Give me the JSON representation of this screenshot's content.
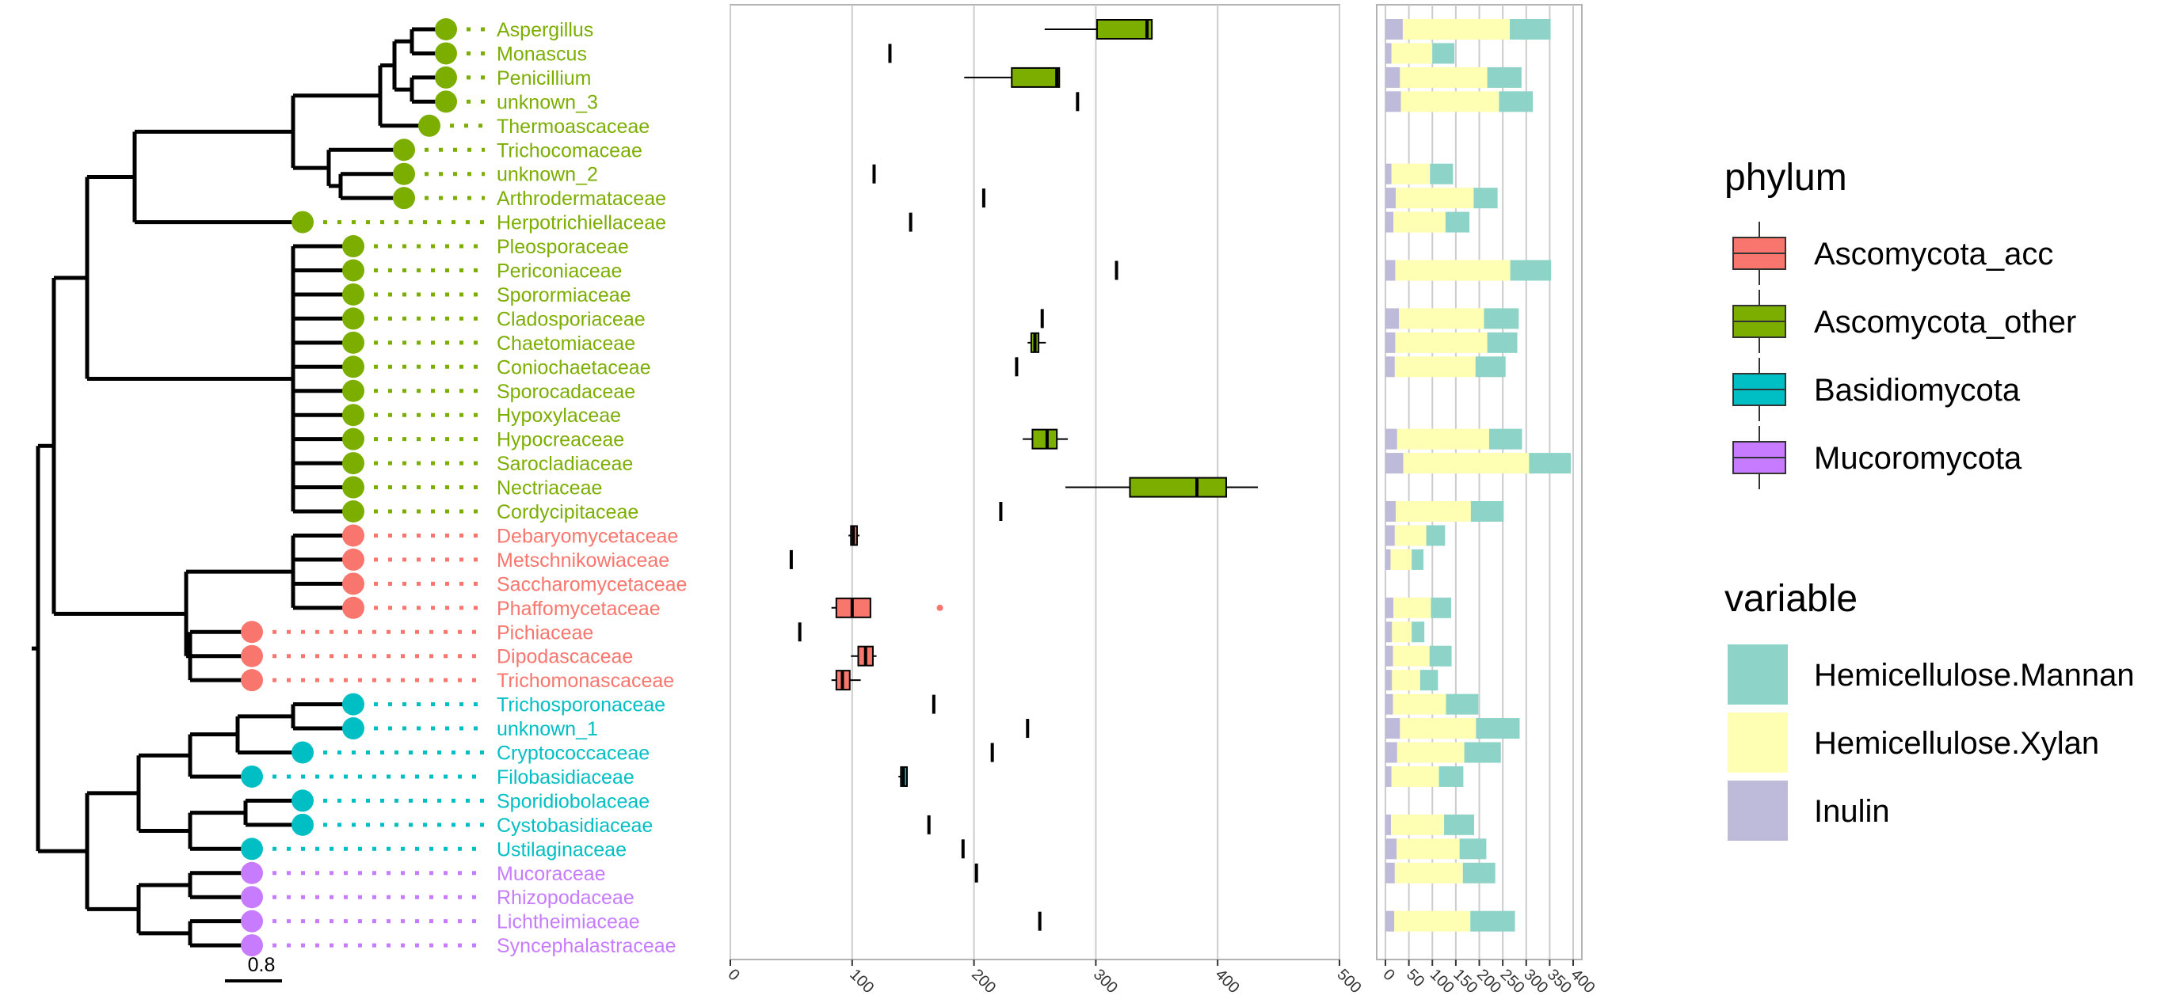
{
  "tree": {
    "scale_label": "0.8"
  },
  "colors": {
    "Ascomycota_acc": "#F8766D",
    "Ascomycota_other": "#7CAE00",
    "Basidiomycota": "#00BFC4",
    "Mucoromycota": "#C77CFF",
    "Hemicellulose.Mannan": "#8DD3C7",
    "Hemicellulose.Xylan": "#FFFFB3",
    "Inulin": "#BEBADA"
  },
  "chart_data": [
    {
      "type": "boxplot",
      "xlim": [
        0,
        500
      ],
      "x_ticks": [
        "0",
        "100",
        "200",
        "300",
        "400",
        "500"
      ],
      "grid": "vertical major",
      "taxa": [
        {
          "label": "Aspergillus",
          "phylum": "Ascomycota_other",
          "box": [
            258,
            301,
            342,
            346,
            346
          ]
        },
        {
          "label": "Monascus",
          "phylum": "Ascomycota_other",
          "box": [
            131,
            131,
            131,
            131,
            131
          ]
        },
        {
          "label": "Penicillium",
          "phylum": "Ascomycota_other",
          "box": [
            192,
            231,
            268,
            270,
            270
          ]
        },
        {
          "label": "unknown_3",
          "phylum": "Ascomycota_other",
          "box": [
            285,
            285,
            285,
            285,
            285
          ]
        },
        {
          "label": "Thermoascaceae",
          "phylum": "Ascomycota_other",
          "box": null
        },
        {
          "label": "Trichocomaceae",
          "phylum": "Ascomycota_other",
          "box": null
        },
        {
          "label": "unknown_2",
          "phylum": "Ascomycota_other",
          "box": [
            118,
            118,
            118,
            118,
            118
          ]
        },
        {
          "label": "Arthrodermataceae",
          "phylum": "Ascomycota_other",
          "box": [
            208,
            208,
            208,
            208,
            208
          ]
        },
        {
          "label": "Herpotrichiellaceae",
          "phylum": "Ascomycota_other",
          "box": [
            148,
            148,
            148,
            148,
            148
          ]
        },
        {
          "label": "Pleosporaceae",
          "phylum": "Ascomycota_other",
          "box": null
        },
        {
          "label": "Periconiaceae",
          "phylum": "Ascomycota_other",
          "box": [
            317,
            317,
            317,
            317,
            317
          ]
        },
        {
          "label": "Sporormiaceae",
          "phylum": "Ascomycota_other",
          "box": null
        },
        {
          "label": "Cladosporiaceae",
          "phylum": "Ascomycota_other",
          "box": [
            256,
            256,
            256,
            256,
            256
          ]
        },
        {
          "label": "Chaetomiaceae",
          "phylum": "Ascomycota_other",
          "box": [
            244,
            247,
            250,
            253,
            259
          ]
        },
        {
          "label": "Coniochaetaceae",
          "phylum": "Ascomycota_other",
          "box": [
            235,
            235,
            235,
            235,
            235
          ]
        },
        {
          "label": "Sporocadaceae",
          "phylum": "Ascomycota_other",
          "box": null
        },
        {
          "label": "Hypoxylaceae",
          "phylum": "Ascomycota_other",
          "box": null
        },
        {
          "label": "Hypocreaceae",
          "phylum": "Ascomycota_other",
          "box": [
            240,
            248,
            260,
            268,
            277
          ]
        },
        {
          "label": "Sarocladiaceae",
          "phylum": "Ascomycota_other",
          "box": null
        },
        {
          "label": "Nectriaceae",
          "phylum": "Ascomycota_other",
          "box": [
            275,
            328,
            383,
            407,
            433
          ]
        },
        {
          "label": "Cordycipitaceae",
          "phylum": "Ascomycota_other",
          "box": [
            222,
            222,
            222,
            222,
            222
          ]
        },
        {
          "label": "Debaryomycetaceae",
          "phylum": "Ascomycota_acc",
          "box": [
            97,
            99,
            101,
            104,
            106
          ]
        },
        {
          "label": "Metschnikowiaceae",
          "phylum": "Ascomycota_acc",
          "box": [
            50,
            50,
            50,
            50,
            50
          ]
        },
        {
          "label": "Saccharomycetaceae",
          "phylum": "Ascomycota_acc",
          "box": null
        },
        {
          "label": "Phaffomycetaceae",
          "phylum": "Ascomycota_acc",
          "box": [
            83,
            87,
            100,
            115,
            115
          ],
          "outliers": [
            172
          ]
        },
        {
          "label": "Pichiaceae",
          "phylum": "Ascomycota_acc",
          "box": [
            57,
            57,
            57,
            57,
            57
          ]
        },
        {
          "label": "Dipodascaceae",
          "phylum": "Ascomycota_acc",
          "box": [
            99,
            105,
            111,
            117,
            120
          ]
        },
        {
          "label": "Trichomonascaceae",
          "phylum": "Ascomycota_acc",
          "box": [
            83,
            87,
            92,
            98,
            107
          ]
        },
        {
          "label": "Trichosporonaceae",
          "phylum": "Basidiomycota",
          "box": [
            167,
            167,
            167,
            167,
            167
          ]
        },
        {
          "label": "unknown_1",
          "phylum": "Basidiomycota",
          "box": [
            244,
            244,
            244,
            244,
            244
          ]
        },
        {
          "label": "Cryptococcaceae",
          "phylum": "Basidiomycota",
          "box": [
            215,
            215,
            215,
            215,
            215
          ]
        },
        {
          "label": "Filobasidiaceae",
          "phylum": "Basidiomycota",
          "box": [
            138,
            140,
            142,
            145,
            145
          ]
        },
        {
          "label": "Sporidiobolaceae",
          "phylum": "Basidiomycota",
          "box": null
        },
        {
          "label": "Cystobasidiaceae",
          "phylum": "Basidiomycota",
          "box": [
            163,
            163,
            163,
            163,
            163
          ]
        },
        {
          "label": "Ustilaginaceae",
          "phylum": "Basidiomycota",
          "box": [
            191,
            191,
            191,
            191,
            191
          ]
        },
        {
          "label": "Mucoraceae",
          "phylum": "Mucoromycota",
          "box": [
            202,
            202,
            202,
            202,
            202
          ]
        },
        {
          "label": "Rhizopodaceae",
          "phylum": "Mucoromycota",
          "box": null
        },
        {
          "label": "Lichtheimiaceae",
          "phylum": "Mucoromycota",
          "box": [
            254,
            254,
            254,
            254,
            254
          ]
        },
        {
          "label": "Syncephalastraceae",
          "phylum": "Mucoromycota",
          "box": null
        }
      ]
    },
    {
      "type": "bar",
      "stacked": true,
      "orientation": "horizontal",
      "xlim": [
        0,
        400
      ],
      "x_ticks": [
        "0",
        "50",
        "100",
        "150",
        "200",
        "250",
        "300",
        "350",
        "400"
      ],
      "grid": "vertical major",
      "series_order": [
        "Inulin",
        "Hemicellulose.Xylan",
        "Hemicellulose.Mannan"
      ],
      "rows": [
        {
          "label": "Aspergillus",
          "Inulin": 37,
          "Hemicellulose.Xylan": 228,
          "Hemicellulose.Mannan": 87
        },
        {
          "label": "Monascus",
          "Inulin": 13,
          "Hemicellulose.Xylan": 87,
          "Hemicellulose.Mannan": 47
        },
        {
          "label": "Penicillium",
          "Inulin": 31,
          "Hemicellulose.Xylan": 186,
          "Hemicellulose.Mannan": 73
        },
        {
          "label": "unknown_3",
          "Inulin": 33,
          "Hemicellulose.Xylan": 209,
          "Hemicellulose.Mannan": 72
        },
        {
          "label": "Thermoascaceae",
          "Inulin": null,
          "Hemicellulose.Xylan": null,
          "Hemicellulose.Mannan": null
        },
        {
          "label": "Trichocomaceae",
          "Inulin": null,
          "Hemicellulose.Xylan": null,
          "Hemicellulose.Mannan": null
        },
        {
          "label": "unknown_2",
          "Inulin": 13,
          "Hemicellulose.Xylan": 82,
          "Hemicellulose.Mannan": 49
        },
        {
          "label": "Arthrodermataceae",
          "Inulin": 22,
          "Hemicellulose.Xylan": 166,
          "Hemicellulose.Mannan": 51
        },
        {
          "label": "Herpotrichiellaceae",
          "Inulin": 17,
          "Hemicellulose.Xylan": 111,
          "Hemicellulose.Mannan": 51
        },
        {
          "label": "Pleosporaceae",
          "Inulin": null,
          "Hemicellulose.Xylan": null,
          "Hemicellulose.Mannan": null
        },
        {
          "label": "Periconiaceae",
          "Inulin": 21,
          "Hemicellulose.Xylan": 245,
          "Hemicellulose.Mannan": 87
        },
        {
          "label": "Sporormiaceae",
          "Inulin": null,
          "Hemicellulose.Xylan": null,
          "Hemicellulose.Mannan": null
        },
        {
          "label": "Cladosporiaceae",
          "Inulin": 29,
          "Hemicellulose.Xylan": 181,
          "Hemicellulose.Mannan": 74
        },
        {
          "label": "Chaetomiaceae",
          "Inulin": 21,
          "Hemicellulose.Xylan": 196,
          "Hemicellulose.Mannan": 64
        },
        {
          "label": "Coniochaetaceae",
          "Inulin": 20,
          "Hemicellulose.Xylan": 172,
          "Hemicellulose.Mannan": 64
        },
        {
          "label": "Sporocadaceae",
          "Inulin": null,
          "Hemicellulose.Xylan": null,
          "Hemicellulose.Mannan": null
        },
        {
          "label": "Hypoxylaceae",
          "Inulin": null,
          "Hemicellulose.Xylan": null,
          "Hemicellulose.Mannan": null
        },
        {
          "label": "Hypocreaceae",
          "Inulin": 25,
          "Hemicellulose.Xylan": 196,
          "Hemicellulose.Mannan": 70
        },
        {
          "label": "Nectriaceae",
          "Inulin": 38,
          "Hemicellulose.Xylan": 268,
          "Hemicellulose.Mannan": 89
        },
        {
          "label": "Sarocladiaceae",
          "Inulin": null,
          "Hemicellulose.Xylan": null,
          "Hemicellulose.Mannan": null
        },
        {
          "label": "Cordycipitaceae",
          "Inulin": 22,
          "Hemicellulose.Xylan": 160,
          "Hemicellulose.Mannan": 70
        },
        {
          "label": "Debaryomycetaceae",
          "Inulin": 20,
          "Hemicellulose.Xylan": 67,
          "Hemicellulose.Mannan": 40
        },
        {
          "label": "Metschnikowiaceae",
          "Inulin": 11,
          "Hemicellulose.Xylan": 45,
          "Hemicellulose.Mannan": 25
        },
        {
          "label": "Saccharomycetaceae",
          "Inulin": null,
          "Hemicellulose.Xylan": null,
          "Hemicellulose.Mannan": null
        },
        {
          "label": "Phaffomycetaceae",
          "Inulin": 17,
          "Hemicellulose.Xylan": 80,
          "Hemicellulose.Mannan": 43
        },
        {
          "label": "Pichiaceae",
          "Inulin": 14,
          "Hemicellulose.Xylan": 42,
          "Hemicellulose.Mannan": 27
        },
        {
          "label": "Dipodascaceae",
          "Inulin": 16,
          "Hemicellulose.Xylan": 78,
          "Hemicellulose.Mannan": 47
        },
        {
          "label": "Trichomonascaceae",
          "Inulin": 14,
          "Hemicellulose.Xylan": 60,
          "Hemicellulose.Mannan": 38
        },
        {
          "label": "Trichosporonaceae",
          "Inulin": 16,
          "Hemicellulose.Xylan": 113,
          "Hemicellulose.Mannan": 69
        },
        {
          "label": "unknown_1",
          "Inulin": 31,
          "Hemicellulose.Xylan": 162,
          "Hemicellulose.Mannan": 93
        },
        {
          "label": "Cryptococcaceae",
          "Inulin": 25,
          "Hemicellulose.Xylan": 143,
          "Hemicellulose.Mannan": 78
        },
        {
          "label": "Filobasidiaceae",
          "Inulin": 13,
          "Hemicellulose.Xylan": 101,
          "Hemicellulose.Mannan": 52
        },
        {
          "label": "Sporidiobolaceae",
          "Inulin": null,
          "Hemicellulose.Xylan": null,
          "Hemicellulose.Mannan": null
        },
        {
          "label": "Cystobasidiaceae",
          "Inulin": 12,
          "Hemicellulose.Xylan": 113,
          "Hemicellulose.Mannan": 64
        },
        {
          "label": "Ustilaginaceae",
          "Inulin": 24,
          "Hemicellulose.Xylan": 134,
          "Hemicellulose.Mannan": 57
        },
        {
          "label": "Mucoraceae",
          "Inulin": 20,
          "Hemicellulose.Xylan": 145,
          "Hemicellulose.Mannan": 69
        },
        {
          "label": "Rhizopodaceae",
          "Inulin": null,
          "Hemicellulose.Xylan": null,
          "Hemicellulose.Mannan": null
        },
        {
          "label": "Lichtheimiaceae",
          "Inulin": 19,
          "Hemicellulose.Xylan": 162,
          "Hemicellulose.Mannan": 95
        },
        {
          "label": "Syncephalastraceae",
          "Inulin": null,
          "Hemicellulose.Xylan": null,
          "Hemicellulose.Mannan": null
        }
      ]
    }
  ],
  "legend": {
    "phylum": {
      "title": "phylum",
      "items": [
        "Ascomycota_acc",
        "Ascomycota_other",
        "Basidiomycota",
        "Mucoromycota"
      ]
    },
    "variable": {
      "title": "variable",
      "items": [
        "Hemicellulose.Mannan",
        "Hemicellulose.Xylan",
        "Inulin"
      ]
    }
  }
}
